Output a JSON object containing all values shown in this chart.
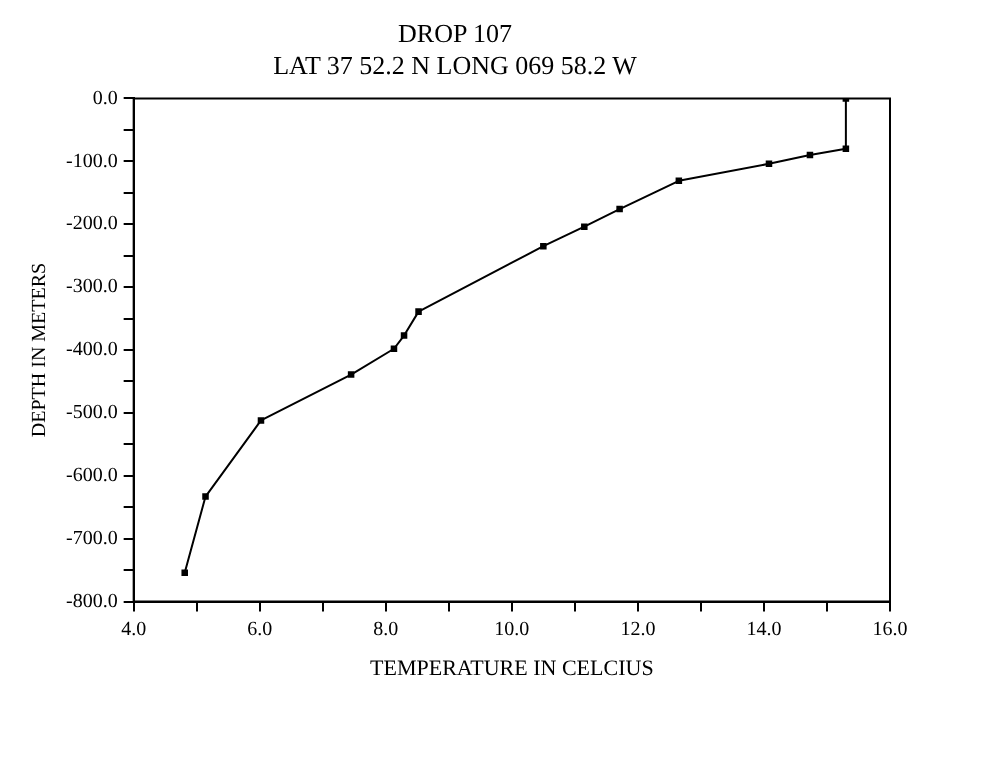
{
  "chart_data": {
    "type": "line",
    "title": [
      "DROP 107",
      "LAT 37 52.2 N LONG 069 58.2 W"
    ],
    "xlabel": "TEMPERATURE IN CELCIUS",
    "ylabel": "DEPTH IN METERS",
    "series": [
      {
        "color": "#000000",
        "x": [
          15.3,
          15.3,
          14.73,
          14.08,
          12.65,
          11.71,
          11.15,
          10.5,
          8.52,
          8.29,
          8.13,
          7.45,
          6.02,
          5.14,
          4.81
        ],
        "values": [
          0,
          -80,
          -90,
          -104,
          -131,
          -176,
          -204,
          -235,
          -339,
          -377,
          -398,
          -439,
          -512,
          -633,
          -754
        ]
      }
    ],
    "xlim": [
      4,
      16
    ],
    "ylim": [
      -800,
      0
    ],
    "xticks": [
      {
        "value": 4,
        "label": "4.0"
      },
      {
        "value": 5,
        "label": null
      },
      {
        "value": 6,
        "label": "6.0"
      },
      {
        "value": 7,
        "label": null
      },
      {
        "value": 8,
        "label": "8.0"
      },
      {
        "value": 9,
        "label": null
      },
      {
        "value": 10,
        "label": "10.0"
      },
      {
        "value": 11,
        "label": null
      },
      {
        "value": 12,
        "label": "12.0"
      },
      {
        "value": 13,
        "label": null
      },
      {
        "value": 14,
        "label": "14.0"
      },
      {
        "value": 15,
        "label": null
      },
      {
        "value": 16,
        "label": "16.0"
      }
    ],
    "yticks": [
      {
        "value": -800,
        "label": "-800.0"
      },
      {
        "value": -750,
        "label": null
      },
      {
        "value": -700,
        "label": "-700.0"
      },
      {
        "value": -650,
        "label": null
      },
      {
        "value": -600,
        "label": "-600.0"
      },
      {
        "value": -550,
        "label": null
      },
      {
        "value": -500,
        "label": "-500.0"
      },
      {
        "value": -450,
        "label": null
      },
      {
        "value": -400,
        "label": "-400.0"
      },
      {
        "value": -350,
        "label": null
      },
      {
        "value": -300,
        "label": "-300.0"
      },
      {
        "value": -250,
        "label": null
      },
      {
        "value": -200,
        "label": "-200.0"
      },
      {
        "value": -150,
        "label": null
      },
      {
        "value": -100,
        "label": "-100.0"
      },
      {
        "value": -50,
        "label": null
      },
      {
        "value": 0,
        "label": "0.0"
      }
    ],
    "marker": "square",
    "grid": false,
    "legend": false
  }
}
